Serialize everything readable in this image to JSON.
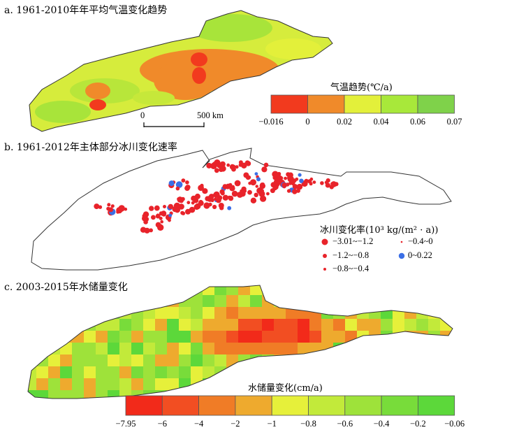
{
  "panels": {
    "a": {
      "title": "a. 1961-2010年年平均气温变化趋势",
      "legend_title": "气温趋势(℃/a)",
      "legend_colors": [
        "#f23a1e",
        "#f08a2a",
        "#e3f03a",
        "#a8e83a",
        "#7fd24a",
        "#6ad82e"
      ],
      "legend_ticks": [
        "−0.016",
        "0",
        "0.02",
        "0.04",
        "0.06",
        "0.07"
      ],
      "scale_bar": {
        "start": "0",
        "end": "500 km"
      }
    },
    "b": {
      "title": "b. 1961-2012年主体部分冰川变化速率",
      "legend_title": "冰川变化率(10³ kg/(m² · a))",
      "classes": [
        {
          "label": "−3.01~−1.2",
          "color": "#e8232a"
        },
        {
          "label": "−1.2~−0.8",
          "color": "#e8232a"
        },
        {
          "label": "−0.8~−0.4",
          "color": "#e8232a"
        },
        {
          "label": "−0.4~0",
          "color": "#e8232a"
        },
        {
          "label": "0~0.22",
          "color": "#3b6fe6"
        }
      ]
    },
    "c": {
      "title": "c. 2003-2015年水储量变化",
      "legend_title": "水储量变化(cm/a)",
      "legend_colors": [
        "#f22a1a",
        "#f24e22",
        "#f07c26",
        "#eeaa2e",
        "#e6f03a",
        "#c2ea3a",
        "#9ee23a",
        "#78dc3a",
        "#5cd83a",
        "#4fd834"
      ],
      "legend_ticks": [
        "−7.95",
        "−6",
        "−4",
        "−2",
        "−1",
        "−0.8",
        "−0.6",
        "−0.4",
        "−0.2",
        "−0.06"
      ]
    }
  }
}
